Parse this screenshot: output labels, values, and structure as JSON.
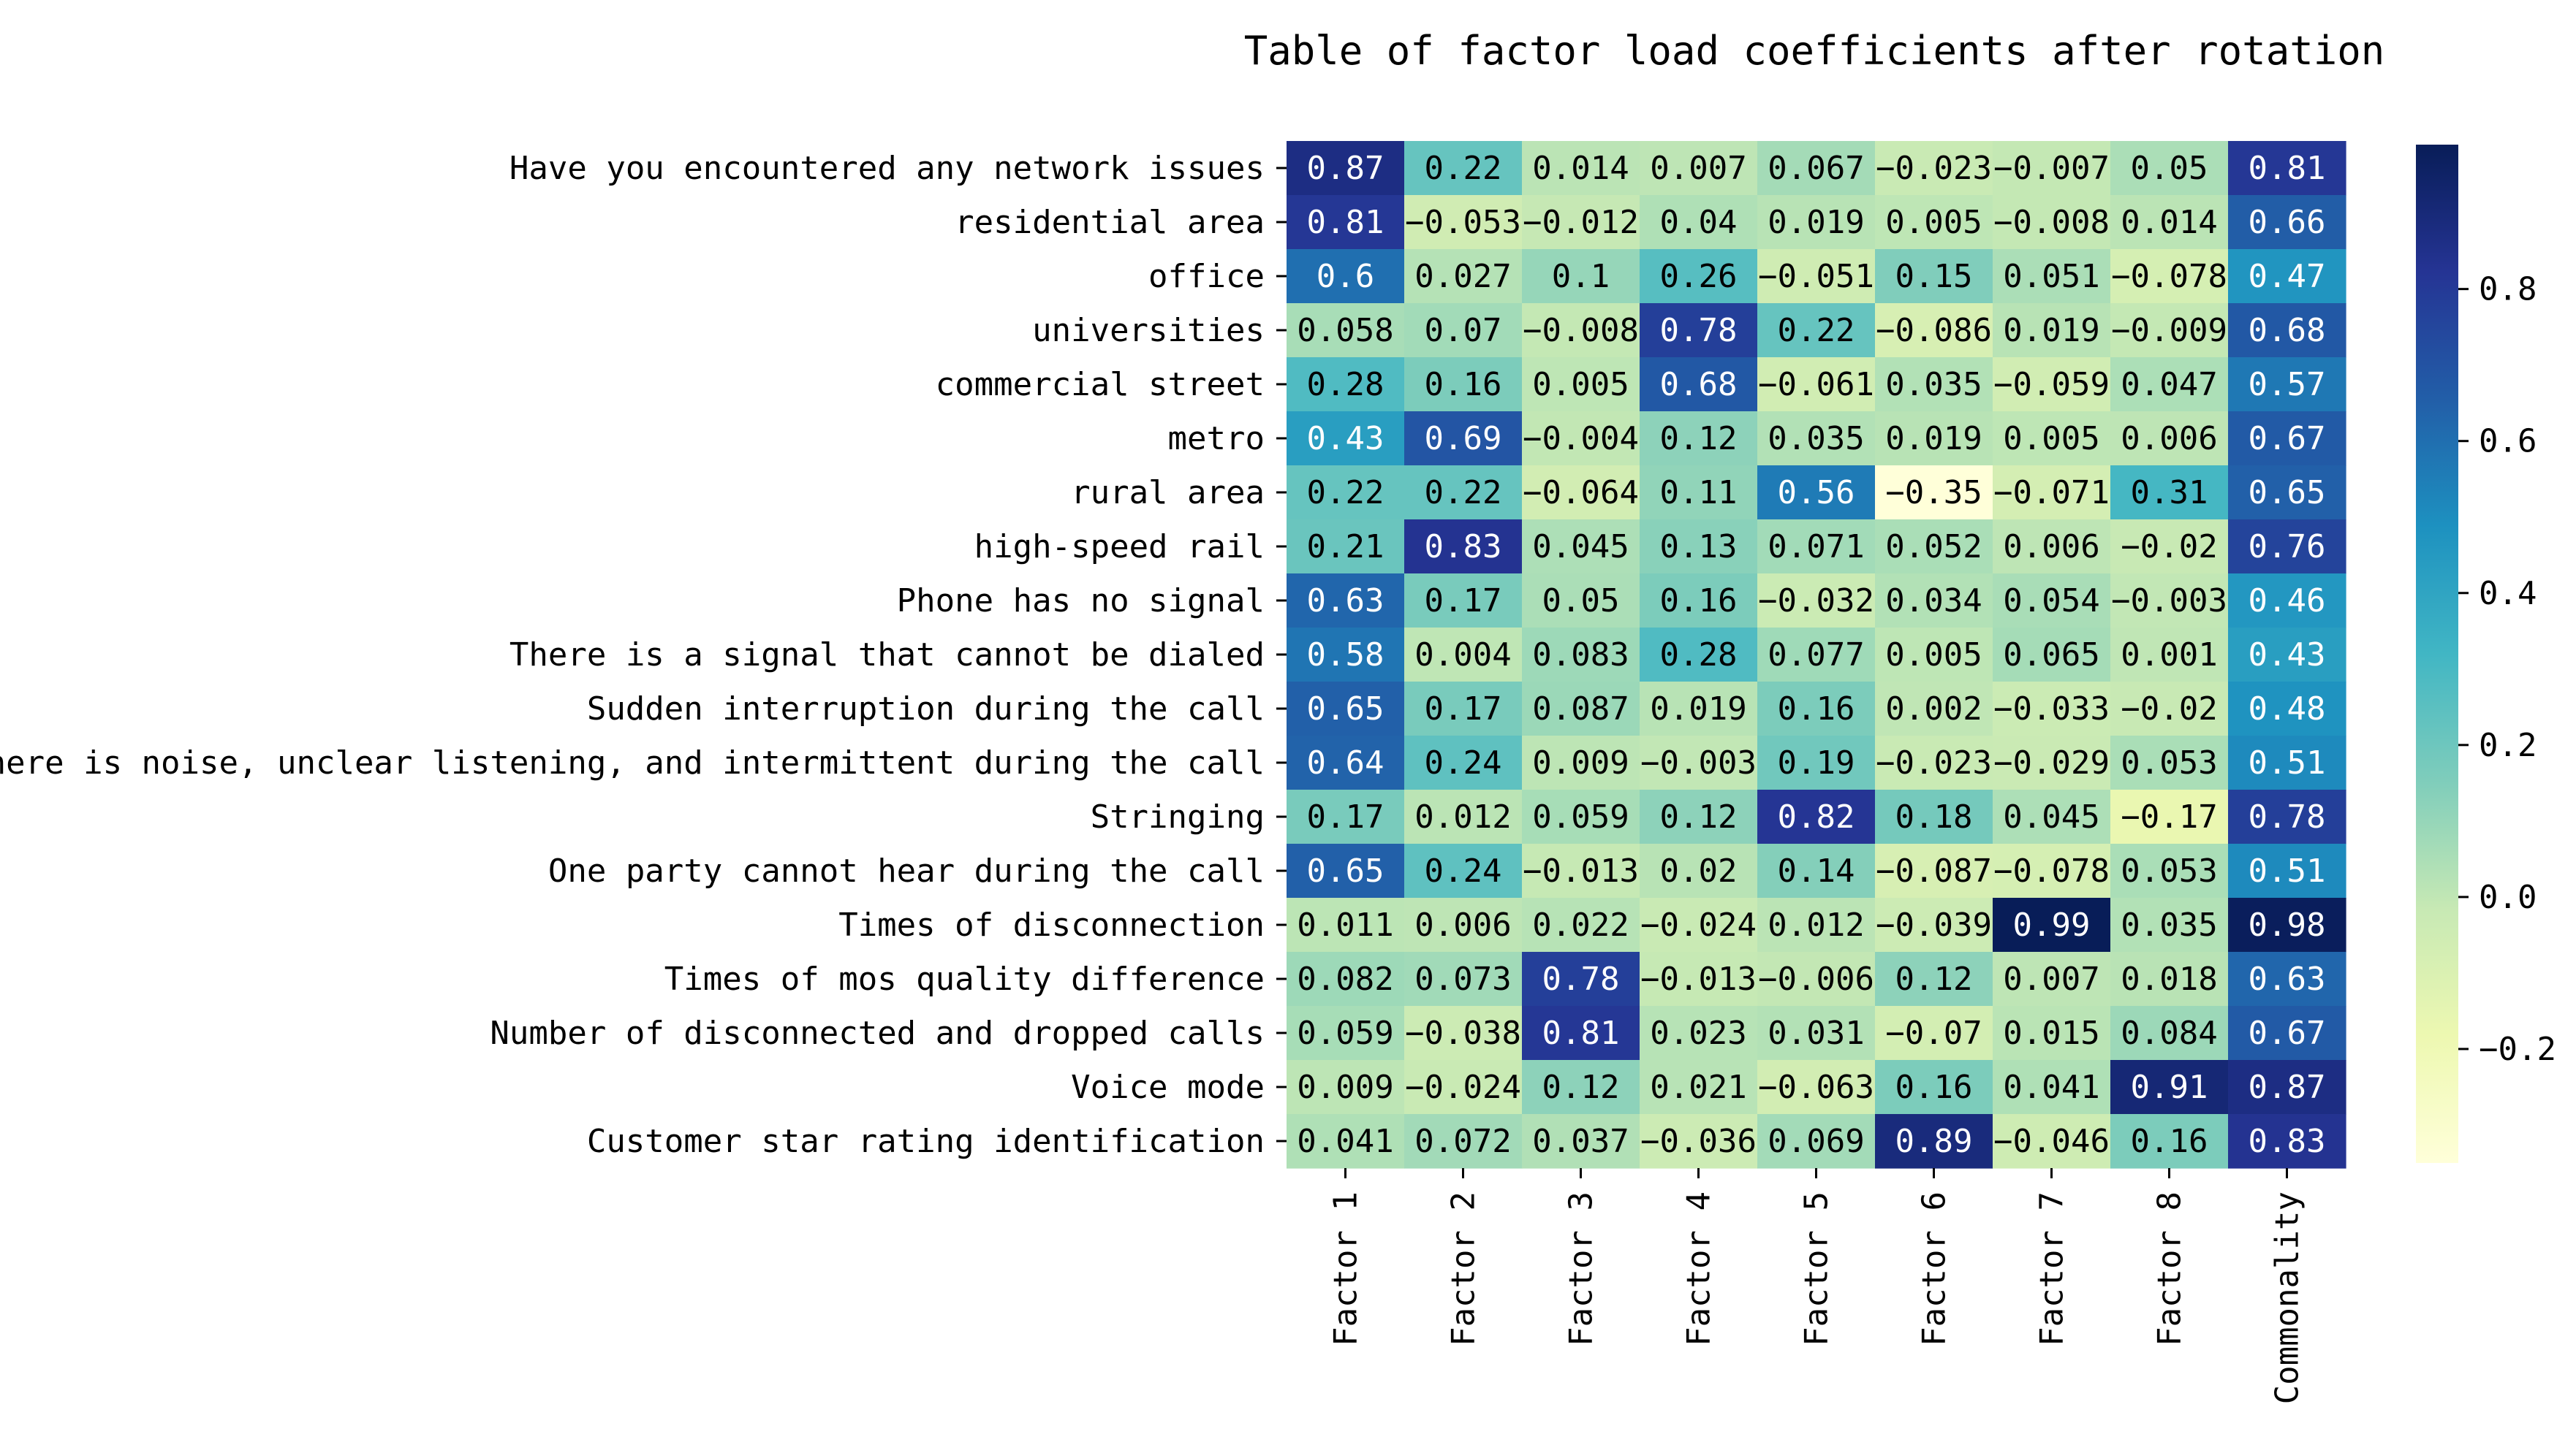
{
  "chart_data": {
    "type": "heatmap",
    "title": "Table of factor load coefficients after rotation",
    "xlabel": "",
    "ylabel": "",
    "colormap": "YlGnBu",
    "vmin": -0.35,
    "vmax": 0.99,
    "columns": [
      "Factor 1",
      "Factor 2",
      "Factor 3",
      "Factor 4",
      "Factor 5",
      "Factor 6",
      "Factor 7",
      "Factor 8",
      "Commonality"
    ],
    "rows": [
      "Have you encountered any network issues",
      "residential area",
      "office",
      "universities",
      "commercial street",
      "metro",
      "rural area",
      "high-speed rail",
      "Phone has no signal",
      "There is a signal that cannot be dialed",
      "Sudden interruption during the call",
      "There is noise, unclear listening, and intermittent during the call",
      "Stringing",
      "One party cannot hear during the call",
      "Times of disconnection",
      "Times of mos quality difference",
      "Number of disconnected and dropped calls",
      "Voice mode",
      "Customer star rating identification"
    ],
    "values": [
      [
        0.87,
        0.22,
        0.014,
        0.007,
        0.067,
        -0.023,
        -0.007,
        0.05,
        0.81
      ],
      [
        0.81,
        -0.053,
        -0.012,
        0.04,
        0.019,
        0.005,
        -0.008,
        0.014,
        0.66
      ],
      [
        0.6,
        0.027,
        0.1,
        0.26,
        -0.051,
        0.15,
        0.051,
        -0.078,
        0.47
      ],
      [
        0.058,
        0.07,
        -0.008,
        0.78,
        0.22,
        -0.086,
        0.019,
        -0.009,
        0.68
      ],
      [
        0.28,
        0.16,
        0.005,
        0.68,
        -0.061,
        0.035,
        -0.059,
        0.047,
        0.57
      ],
      [
        0.43,
        0.69,
        -0.004,
        0.12,
        0.035,
        0.019,
        0.005,
        0.006,
        0.67
      ],
      [
        0.22,
        0.22,
        -0.064,
        0.11,
        0.56,
        -0.35,
        -0.071,
        0.31,
        0.65
      ],
      [
        0.21,
        0.83,
        0.045,
        0.13,
        0.071,
        0.052,
        0.006,
        -0.02,
        0.76
      ],
      [
        0.63,
        0.17,
        0.05,
        0.16,
        -0.032,
        0.034,
        0.054,
        -0.003,
        0.46
      ],
      [
        0.58,
        0.004,
        0.083,
        0.28,
        0.077,
        0.005,
        0.065,
        0.001,
        0.43
      ],
      [
        0.65,
        0.17,
        0.087,
        0.019,
        0.16,
        0.002,
        -0.033,
        -0.02,
        0.48
      ],
      [
        0.64,
        0.24,
        0.009,
        -0.003,
        0.19,
        -0.023,
        -0.029,
        0.053,
        0.51
      ],
      [
        0.17,
        0.012,
        0.059,
        0.12,
        0.82,
        0.18,
        0.045,
        -0.17,
        0.78
      ],
      [
        0.65,
        0.24,
        -0.013,
        0.02,
        0.14,
        -0.087,
        -0.078,
        0.053,
        0.51
      ],
      [
        0.011,
        0.006,
        0.022,
        -0.024,
        0.012,
        -0.039,
        0.99,
        0.035,
        0.98
      ],
      [
        0.082,
        0.073,
        0.78,
        -0.013,
        -0.006,
        0.12,
        0.007,
        0.018,
        0.63
      ],
      [
        0.059,
        -0.038,
        0.81,
        0.023,
        0.031,
        -0.07,
        0.015,
        0.084,
        0.67
      ],
      [
        0.009,
        -0.024,
        0.12,
        0.021,
        -0.063,
        0.16,
        0.041,
        0.91,
        0.87
      ],
      [
        0.041,
        0.072,
        0.037,
        -0.036,
        0.069,
        0.89,
        -0.046,
        0.16,
        0.83
      ]
    ],
    "colorbar_ticks": [
      0.8,
      0.6,
      0.4,
      0.2,
      0.0,
      -0.2
    ],
    "colorbar_tick_labels": [
      "0.8",
      "0.6",
      "0.4",
      "0.2",
      "0.0",
      "−0.2"
    ]
  }
}
